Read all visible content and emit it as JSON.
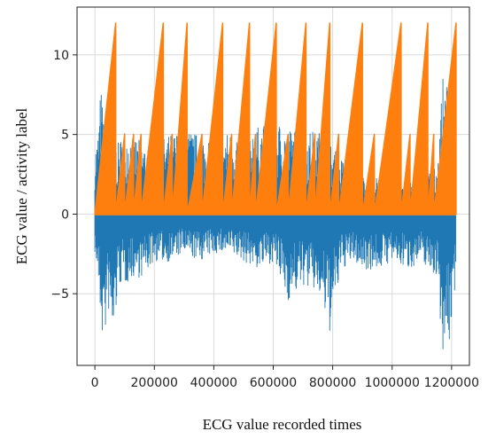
{
  "chart_data": {
    "type": "line",
    "title": "",
    "xlabel": "ECG value recorded times",
    "ylabel": "ECG value / activity label",
    "xlim": [
      -60000,
      1260000
    ],
    "ylim": [
      -9.5,
      13
    ],
    "xticks": [
      0,
      200000,
      400000,
      600000,
      800000,
      1000000,
      1200000
    ],
    "xtick_labels": [
      "0",
      "200000",
      "400000",
      "600000",
      "800000",
      "1000000",
      "1200000"
    ],
    "yticks": [
      -5,
      0,
      5,
      10
    ],
    "ytick_labels": [
      "−5",
      "0",
      "5",
      "10"
    ],
    "grid": true,
    "legend": "none",
    "colors": {
      "ecg": "#1f77b4",
      "activity": "#ff7f0e"
    },
    "ecg_envelope": {
      "x": [
        0,
        10000,
        20000,
        30000,
        45000,
        60000,
        80000,
        100000,
        130000,
        160000,
        200000,
        250000,
        300000,
        350000,
        400000,
        450000,
        500000,
        550000,
        600000,
        650000,
        700000,
        750000,
        790000,
        830000,
        870000,
        900000,
        950000,
        1000000,
        1050000,
        1100000,
        1150000,
        1170000,
        1190000,
        1215000
      ],
      "upper": [
        4.3,
        5,
        8.2,
        6,
        5,
        4.5,
        4.5,
        5.5,
        5,
        4.5,
        4.5,
        5,
        5.5,
        5,
        4.8,
        5.2,
        5.5,
        5.5,
        6,
        5.5,
        5.2,
        5.3,
        4.5,
        3.5,
        3,
        2.5,
        2.3,
        2,
        2.3,
        2.5,
        3,
        8.5,
        8.3,
        2
      ],
      "lower": [
        -2.5,
        -4,
        -7,
        -8.5,
        -6,
        -8.5,
        -4.5,
        -4.5,
        -4,
        -4,
        -3,
        -3,
        -2.5,
        -3,
        -2.5,
        -2.5,
        -3,
        -3.5,
        -3,
        -5.5,
        -4.5,
        -5,
        -7.5,
        -3.5,
        -3,
        -3.5,
        -3.5,
        -3,
        -3.5,
        -3,
        -4,
        -8.5,
        -8.8,
        -4
      ]
    },
    "activity_label": {
      "x": [
        0,
        70000,
        70000,
        100000,
        100000,
        130000,
        130000,
        155000,
        155000,
        230000,
        230000,
        260000,
        260000,
        310000,
        310000,
        360000,
        360000,
        430000,
        430000,
        460000,
        460000,
        520000,
        520000,
        540000,
        540000,
        610000,
        610000,
        650000,
        650000,
        710000,
        710000,
        740000,
        740000,
        790000,
        790000,
        820000,
        820000,
        900000,
        900000,
        940000,
        940000,
        1030000,
        1030000,
        1060000,
        1060000,
        1120000,
        1120000,
        1140000,
        1140000,
        1215000,
        1215000
      ],
      "y": [
        0,
        12,
        0,
        5,
        0,
        5,
        0,
        5,
        0,
        12,
        0,
        5,
        0,
        12,
        0,
        5,
        0,
        12,
        0,
        5,
        0,
        12,
        0,
        5,
        0,
        12,
        0,
        5,
        0,
        12,
        0,
        5,
        0,
        12,
        0,
        5,
        0,
        12,
        0,
        5,
        0,
        12,
        0,
        5,
        0,
        12,
        0,
        5,
        0,
        12,
        0
      ]
    }
  }
}
